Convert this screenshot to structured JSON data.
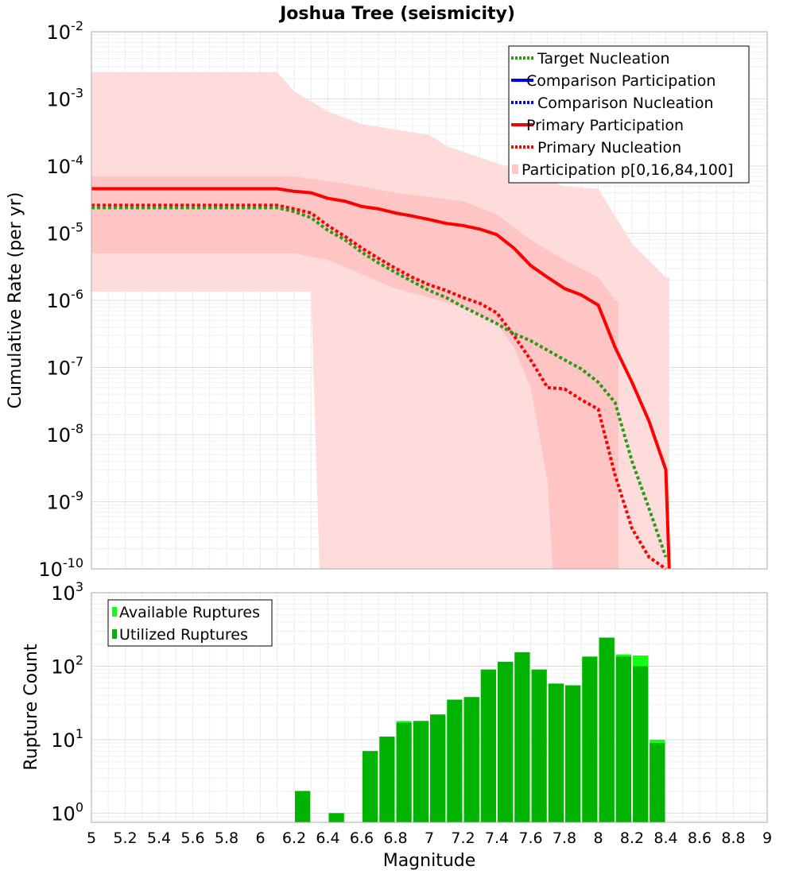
{
  "title": "Joshua Tree (seismicity)",
  "chart_data": [
    {
      "type": "line",
      "panel": "top",
      "ylabel": "Cumulative Rate (per yr)",
      "yscale": "log",
      "ylim": [
        1e-10,
        0.01
      ],
      "xlim": [
        5,
        9
      ],
      "y_tick_exponents": [
        "-10",
        "-9",
        "-8",
        "-7",
        "-6",
        "-5",
        "-4",
        "-3",
        "-2"
      ],
      "y_tick_base": "10",
      "legend": {
        "position": "top-right",
        "entries": [
          {
            "label": "Target Nucleation",
            "color": "#2e9a17",
            "style": "dotted"
          },
          {
            "label": "Comparison Participation",
            "color": "#0000ff",
            "style": "solid"
          },
          {
            "label": "Comparison Nucleation",
            "color": "#0000ff",
            "style": "dotted"
          },
          {
            "label": "Primary Participation",
            "color": "#ff0000",
            "style": "solid"
          },
          {
            "label": "Primary Nucleation",
            "color": "#ff0000",
            "style": "dotted"
          },
          {
            "label": "Participation p[0,16,84,100]",
            "color": "#ffc8c8",
            "style": "band"
          }
        ]
      },
      "bands": [
        {
          "name": "p0-p100",
          "color": "#ffdcdc",
          "upper": {
            "x": [
              5.0,
              6.1,
              6.2,
              6.4,
              6.6,
              7.0,
              7.1,
              7.8,
              8.0,
              8.2,
              8.4
            ],
            "y": [
              0.0025,
              0.0025,
              0.0013,
              0.00065,
              0.00042,
              0.00029,
              0.0002,
              5e-05,
              4.6e-05,
              7e-06,
              2.2e-06
            ]
          },
          "lower": {
            "x": [
              5.0,
              6.3,
              6.35,
              6.36
            ],
            "y": [
              1.35e-06,
              1.35e-06,
              1e-10,
              1e-10
            ]
          },
          "right_x": 8.42
        },
        {
          "name": "p16-p84",
          "color": "#ffc4c4",
          "upper": {
            "x": [
              5.0,
              6.2,
              6.5,
              6.8,
              7.2,
              7.4,
              7.6,
              7.8,
              8.0,
              8.1
            ],
            "y": [
              7e-05,
              7e-05,
              5.5e-05,
              4e-05,
              3e-05,
              1.9e-05,
              8e-06,
              4e-06,
              2.2e-06,
              1e-06
            ]
          },
          "lower": {
            "x": [
              5.0,
              6.2,
              6.4,
              6.8,
              7.2,
              7.4,
              7.5,
              7.6,
              7.7,
              7.73
            ],
            "y": [
              5e-06,
              5e-06,
              4e-06,
              1.5e-06,
              8e-07,
              4.5e-07,
              2e-07,
              5e-08,
              2e-09,
              1e-10
            ]
          },
          "right_x": 8.12
        }
      ],
      "series": [
        {
          "name": "Primary Participation",
          "color": "#ff0000",
          "style": "solid",
          "x": [
            5.0,
            6.1,
            6.2,
            6.3,
            6.4,
            6.5,
            6.6,
            6.7,
            6.8,
            6.9,
            7.0,
            7.1,
            7.2,
            7.3,
            7.4,
            7.5,
            7.6,
            7.7,
            7.8,
            7.9,
            8.0,
            8.1,
            8.2,
            8.3,
            8.4,
            8.42
          ],
          "y": [
            4.6e-05,
            4.6e-05,
            4.2e-05,
            4e-05,
            3.3e-05,
            3e-05,
            2.5e-05,
            2.3e-05,
            2e-05,
            1.8e-05,
            1.6e-05,
            1.4e-05,
            1.3e-05,
            1.15e-05,
            9.5e-06,
            6e-06,
            3.3e-06,
            2.2e-06,
            1.5e-06,
            1.2e-06,
            8.5e-07,
            2e-07,
            6e-08,
            1.6e-08,
            3e-09,
            1e-10
          ]
        },
        {
          "name": "Primary Nucleation",
          "color": "#ff0000",
          "style": "dotted",
          "x": [
            5.0,
            6.1,
            6.2,
            6.3,
            6.4,
            6.5,
            6.6,
            6.7,
            6.8,
            6.9,
            7.0,
            7.1,
            7.2,
            7.3,
            7.4,
            7.5,
            7.6,
            7.7,
            7.8,
            7.9,
            8.0,
            8.1,
            8.2,
            8.3,
            8.4
          ],
          "y": [
            2.6e-05,
            2.6e-05,
            2.3e-05,
            2e-05,
            1.3e-05,
            9e-06,
            6e-06,
            4.2e-06,
            3e-06,
            2.2e-06,
            1.7e-06,
            1.4e-06,
            1.1e-06,
            9e-07,
            6.5e-07,
            3e-07,
            1.3e-07,
            5e-08,
            4.8e-08,
            3.3e-08,
            2.4e-08,
            2.5e-09,
            4e-10,
            1.5e-10,
            1e-10
          ]
        },
        {
          "name": "Target Nucleation",
          "color": "#2e9a17",
          "style": "dotted",
          "x": [
            5.0,
            6.1,
            6.2,
            6.3,
            6.4,
            6.5,
            6.6,
            6.7,
            6.8,
            6.9,
            7.0,
            7.1,
            7.2,
            7.3,
            7.4,
            7.5,
            7.6,
            7.7,
            7.8,
            7.9,
            8.0,
            8.1,
            8.2,
            8.3,
            8.4
          ],
          "y": [
            2.4e-05,
            2.4e-05,
            2.1e-05,
            1.7e-05,
            1.1e-05,
            8e-06,
            5.2e-06,
            3.6e-06,
            2.6e-06,
            1.9e-06,
            1.4e-06,
            1.1e-06,
            8e-07,
            6e-07,
            4.5e-07,
            3.2e-07,
            2.5e-07,
            1.8e-07,
            1.3e-07,
            9.5e-08,
            6e-08,
            3e-08,
            4e-09,
            8e-10,
            1.5e-10
          ]
        }
      ]
    },
    {
      "type": "bar",
      "panel": "bottom",
      "xlabel": "Magnitude",
      "ylabel": "Rupture Count",
      "yscale": "log",
      "ylim": [
        0.75,
        1000
      ],
      "xlim": [
        5,
        9
      ],
      "bar_width": 0.1,
      "x_ticks": [
        "5",
        "5.2",
        "5.4",
        "5.6",
        "5.8",
        "6",
        "6.2",
        "6.4",
        "6.6",
        "6.8",
        "7",
        "7.2",
        "7.4",
        "7.6",
        "7.8",
        "8",
        "8.2",
        "8.4",
        "8.6",
        "8.8",
        "9"
      ],
      "y_tick_exponents": [
        "0",
        "1",
        "2",
        "3"
      ],
      "y_tick_base": "10",
      "legend": {
        "position": "top-left",
        "entries": [
          {
            "label": "Available Ruptures",
            "color": "#11ff11"
          },
          {
            "label": "Utilized Ruptures",
            "color": "#00b300"
          }
        ]
      },
      "x": [
        6.25,
        6.45,
        6.65,
        6.75,
        6.85,
        6.95,
        7.05,
        7.15,
        7.25,
        7.35,
        7.45,
        7.55,
        7.65,
        7.75,
        7.85,
        7.95,
        8.05,
        8.15,
        8.25,
        8.35
      ],
      "series": [
        {
          "name": "Available Ruptures",
          "color": "#11ff11",
          "values": [
            2,
            1,
            7,
            11,
            18,
            18,
            22,
            35,
            38,
            90,
            115,
            155,
            90,
            58,
            55,
            135,
            245,
            145,
            140,
            10
          ]
        },
        {
          "name": "Utilized Ruptures",
          "color": "#00b300",
          "values": [
            2,
            1,
            7,
            11,
            17,
            18,
            22,
            35,
            38,
            90,
            115,
            155,
            90,
            58,
            55,
            135,
            245,
            135,
            100,
            9
          ]
        }
      ]
    }
  ]
}
